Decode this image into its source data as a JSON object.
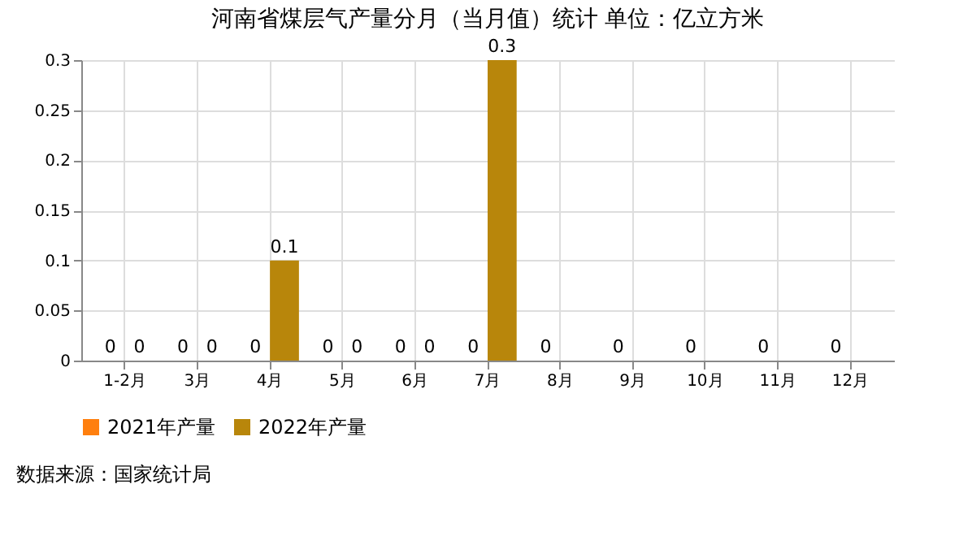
{
  "chart_data": {
    "type": "bar",
    "title": "河南省煤层气产量分月（当月值）统计 单位：亿立方米",
    "categories": [
      "1-2月",
      "3月",
      "4月",
      "5月",
      "6月",
      "7月",
      "8月",
      "9月",
      "10月",
      "11月",
      "12月"
    ],
    "series": [
      {
        "name": "2021年产量",
        "color": "#ff7f0e",
        "values": [
          0,
          0,
          0,
          0,
          0,
          0,
          0,
          0,
          0,
          0,
          0
        ]
      },
      {
        "name": "2022年产量",
        "color": "#b8860b",
        "values": [
          0,
          0,
          0.1,
          0,
          0,
          0.3,
          null,
          null,
          null,
          null,
          null
        ]
      }
    ],
    "ylim": [
      0,
      0.3
    ],
    "yticks": [
      0,
      0.05,
      0.1,
      0.15,
      0.2,
      0.25,
      0.3
    ],
    "grid": true,
    "legend": "bottom",
    "data_labels": true,
    "annotations": [
      "数据来源：国家统计局"
    ]
  }
}
